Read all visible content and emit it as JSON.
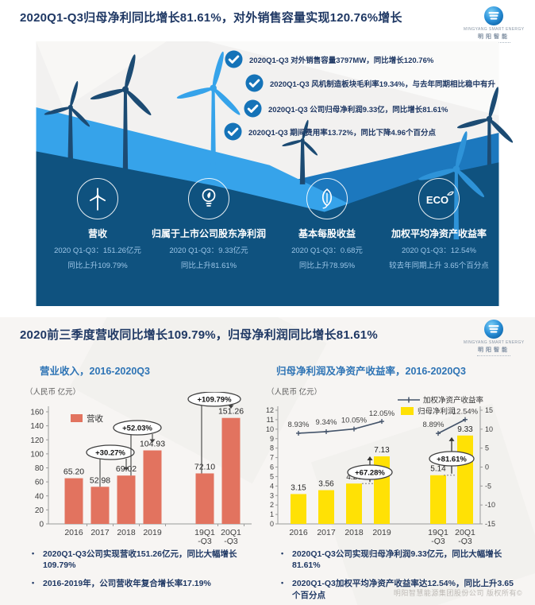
{
  "logo": {
    "name_en": "MINGYANG SMART ENERGY",
    "name_zh": "明阳智能"
  },
  "panel1": {
    "title": "2020Q1-Q3归母净利同比增长81.61%，对外销售容量实现120.76%增长",
    "bullets": [
      "2020Q1-Q3 对外销售容量3797MW，同比增长120.76%",
      "2020Q1-Q3 风机制造板块毛利率19.34%，与去年同期相比稳中有升",
      "2020Q1-Q3 公司归母净利润9.33亿，同比增长81.61%",
      "2020Q1-Q3 期间费用率13.72%，同比下降4.96个百分点"
    ],
    "metrics": [
      {
        "icon": "wind-turbine-icon",
        "label": "营收",
        "value": "2020 Q1-Q3：151.26亿元",
        "change": "同比上升109.79%"
      },
      {
        "icon": "bulb-leaf-icon",
        "label": "归属于上市公司股东净利润",
        "value": "2020 Q1-Q3：9.33亿元",
        "change": "同比上升81.61%"
      },
      {
        "icon": "leaf-icon",
        "label": "基本每股收益",
        "value": "2020 Q1-Q3：0.68元",
        "change": "同比上升78.95%"
      },
      {
        "icon": "eco-icon",
        "label": "加权平均净资产收益率",
        "value": "2020 Q1-Q3：12.54%",
        "change": "较去年同期上升 3.65个百分点"
      }
    ]
  },
  "panel2": {
    "title": "2020前三季度营收同比增长109.79%，归母净利润同比增长81.61%",
    "notes_left": [
      "2020Q1-Q3公司实现营收151.26亿元，同比大幅增长109.79%",
      "2016-2019年，公司营收年复合增长率17.19%"
    ],
    "notes_right": [
      "2020Q1-Q3公司实现归母净利润9.33亿元，同比大幅增长81.61%",
      "2020Q1-Q3加权平均净资产收益率达12.54%，同比上升3.65个百分点"
    ],
    "footer": "明阳智慧能源集团股份公司 版权所有©"
  },
  "chart_data": [
    {
      "type": "bar",
      "title": "营业收入，2016-2020Q3",
      "unit_label": "（人民币 亿元）",
      "legend": [
        {
          "label": "营收",
          "color": "#E2735F"
        }
      ],
      "categories": [
        "2016",
        "2017",
        "2018",
        "2019",
        "19Q1|-Q3",
        "20Q1|-Q3"
      ],
      "values": [
        65.2,
        52.98,
        69.02,
        104.93,
        72.1,
        151.26
      ],
      "value_labels": [
        "65.20",
        "52.98",
        "69.02",
        "104.93",
        "72.10",
        "151.26"
      ],
      "bar_color": "#E2735F",
      "ylim": [
        0,
        160
      ],
      "ytick_step": 20,
      "grid": false,
      "annotations": [
        {
          "text": "+30.27%",
          "from_index": 1,
          "to_index": 2
        },
        {
          "text": "+52.03%",
          "from_index": 2,
          "to_index": 3
        },
        {
          "text": "+109.79%",
          "from_index": 4,
          "to_index": 5
        }
      ]
    },
    {
      "type": "bar+line",
      "title": "归母净利润及净资产收益率，2016-2020Q3",
      "unit_label": "（人民币 亿元）",
      "categories": [
        "2016",
        "2017",
        "2018",
        "2019",
        "19Q1|-Q3",
        "20Q1|-Q3"
      ],
      "series": [
        {
          "name": "归母净利润",
          "type": "bar",
          "axis": "left",
          "color": "#FFE105",
          "values": [
            3.15,
            3.56,
            4.26,
            7.13,
            5.14,
            9.33
          ],
          "value_labels": [
            "3.15",
            "3.56",
            "4.26",
            "7.13",
            "5.14",
            "9.33"
          ]
        },
        {
          "name": "加权净资产收益率",
          "type": "line",
          "axis": "right",
          "color": "#44546A",
          "values": [
            8.93,
            9.34,
            10.05,
            12.05,
            8.89,
            12.54
          ],
          "value_labels": [
            "8.93%",
            "9.34%",
            "10.05%",
            "12.05%",
            "8.89%",
            "12.54%"
          ]
        }
      ],
      "ylim_left": [
        0,
        12
      ],
      "ytick_step_left": 1,
      "ylim_right": [
        -15,
        15
      ],
      "ytick_step_right": 5,
      "legend_position": "top-right",
      "grid": false,
      "annotations": [
        {
          "text": "+67.28%",
          "from_index": 2,
          "to_index": 3
        },
        {
          "text": "+81.61%",
          "from_index": 4,
          "to_index": 5
        }
      ]
    }
  ]
}
